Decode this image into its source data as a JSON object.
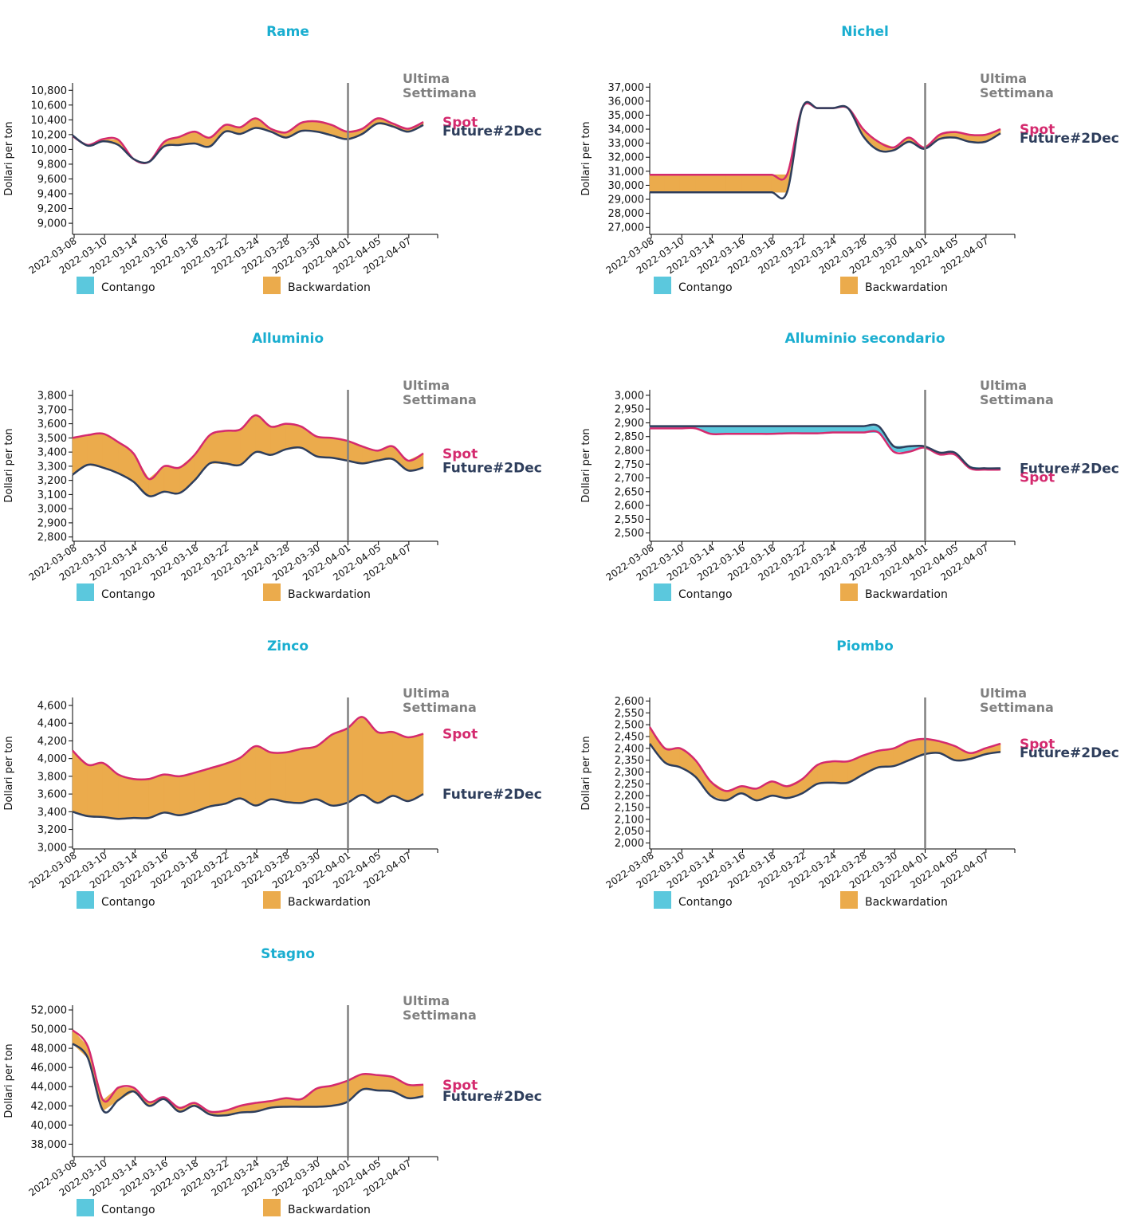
{
  "colors": {
    "title": "#1aaed0",
    "spot": "#d42a6e",
    "future": "#2e3e5c",
    "contango": "#5bc8dd",
    "backwardation": "#ebab4c",
    "annotation": "#808080",
    "vline": "#808080"
  },
  "legend": {
    "contango": "Contango",
    "backwardation": "Backwardation"
  },
  "chart_data": [
    {
      "type": "area",
      "title": "Rame",
      "ylabel": "Dollari per ton",
      "annotation": [
        "Ultima",
        "Settimana"
      ],
      "vline_at": "2022-04-01",
      "x": [
        "2022-03-08",
        "2022-03-09",
        "2022-03-10",
        "2022-03-11",
        "2022-03-14",
        "2022-03-15",
        "2022-03-16",
        "2022-03-17",
        "2022-03-18",
        "2022-03-21",
        "2022-03-22",
        "2022-03-23",
        "2022-03-24",
        "2022-03-25",
        "2022-03-28",
        "2022-03-29",
        "2022-03-30",
        "2022-03-31",
        "2022-04-01",
        "2022-04-04",
        "2022-04-05",
        "2022-04-06",
        "2022-04-07",
        "2022-04-08"
      ],
      "x_tick_labels": [
        "2022-03-08",
        "2022-03-10",
        "2022-03-14",
        "2022-03-16",
        "2022-03-18",
        "2022-03-22",
        "2022-03-24",
        "2022-03-28",
        "2022-03-30",
        "2022-04-01",
        "2022-04-05",
        "2022-04-07"
      ],
      "yticks": [
        9000,
        9200,
        9400,
        9600,
        9800,
        10000,
        10200,
        10400,
        10600,
        10800
      ],
      "ylim": [
        8850,
        10900
      ],
      "series": [
        {
          "name": "Spot",
          "values": [
            10180,
            10060,
            10140,
            10130,
            9870,
            9830,
            10100,
            10170,
            10240,
            10160,
            10330,
            10300,
            10420,
            10280,
            10230,
            10360,
            10380,
            10330,
            10240,
            10280,
            10420,
            10350,
            10280,
            10370
          ]
        },
        {
          "name": "Future#2Dec",
          "values": [
            10190,
            10050,
            10110,
            10060,
            9870,
            9830,
            10040,
            10060,
            10080,
            10040,
            10240,
            10210,
            10290,
            10240,
            10160,
            10250,
            10240,
            10190,
            10140,
            10210,
            10350,
            10310,
            10240,
            10330
          ]
        }
      ]
    },
    {
      "type": "area",
      "title": "Nichel",
      "ylabel": "Dollari per ton",
      "annotation": [
        "Ultima",
        "Settimana"
      ],
      "vline_at": "2022-04-01",
      "x": [
        "2022-03-08",
        "2022-03-09",
        "2022-03-10",
        "2022-03-11",
        "2022-03-14",
        "2022-03-15",
        "2022-03-16",
        "2022-03-17",
        "2022-03-18",
        "2022-03-21",
        "2022-03-22",
        "2022-03-23",
        "2022-03-24",
        "2022-03-25",
        "2022-03-28",
        "2022-03-29",
        "2022-03-30",
        "2022-03-31",
        "2022-04-01",
        "2022-04-04",
        "2022-04-05",
        "2022-04-06",
        "2022-04-07",
        "2022-04-08"
      ],
      "x_tick_labels": [
        "2022-03-08",
        "2022-03-10",
        "2022-03-14",
        "2022-03-16",
        "2022-03-18",
        "2022-03-22",
        "2022-03-24",
        "2022-03-28",
        "2022-03-30",
        "2022-04-01",
        "2022-04-05",
        "2022-04-07"
      ],
      "yticks": [
        27000,
        28000,
        29000,
        30000,
        31000,
        32000,
        33000,
        34000,
        35000,
        36000,
        37000
      ],
      "ylim": [
        26500,
        37300
      ],
      "series": [
        {
          "name": "Spot",
          "values": [
            30750,
            30750,
            30750,
            30750,
            30750,
            30750,
            30750,
            30750,
            30750,
            30750,
            35500,
            35500,
            35500,
            35500,
            34000,
            33100,
            32700,
            33400,
            32700,
            33600,
            33800,
            33600,
            33600,
            34000
          ]
        },
        {
          "name": "Future#2Dec",
          "values": [
            29500,
            29500,
            29500,
            29500,
            29500,
            29500,
            29500,
            29500,
            29500,
            29500,
            35500,
            35500,
            35500,
            35500,
            33500,
            32500,
            32500,
            33100,
            32600,
            33300,
            33400,
            33100,
            33100,
            33700
          ]
        }
      ]
    },
    {
      "type": "area",
      "title": "Alluminio",
      "ylabel": "Dollari per ton",
      "annotation": [
        "Ultima",
        "Settimana"
      ],
      "vline_at": "2022-04-01",
      "x": [
        "2022-03-08",
        "2022-03-09",
        "2022-03-10",
        "2022-03-11",
        "2022-03-14",
        "2022-03-15",
        "2022-03-16",
        "2022-03-17",
        "2022-03-18",
        "2022-03-21",
        "2022-03-22",
        "2022-03-23",
        "2022-03-24",
        "2022-03-25",
        "2022-03-28",
        "2022-03-29",
        "2022-03-30",
        "2022-03-31",
        "2022-04-01",
        "2022-04-04",
        "2022-04-05",
        "2022-04-06",
        "2022-04-07",
        "2022-04-08"
      ],
      "x_tick_labels": [
        "2022-03-08",
        "2022-03-10",
        "2022-03-14",
        "2022-03-16",
        "2022-03-18",
        "2022-03-22",
        "2022-03-24",
        "2022-03-28",
        "2022-03-30",
        "2022-04-01",
        "2022-04-05",
        "2022-04-07"
      ],
      "yticks": [
        2800,
        2900,
        3000,
        3100,
        3200,
        3300,
        3400,
        3500,
        3600,
        3700,
        3800
      ],
      "ylim": [
        2770,
        3840
      ],
      "series": [
        {
          "name": "Spot",
          "values": [
            3500,
            3520,
            3530,
            3470,
            3390,
            3210,
            3300,
            3290,
            3380,
            3520,
            3550,
            3560,
            3660,
            3580,
            3600,
            3580,
            3510,
            3500,
            3480,
            3440,
            3410,
            3440,
            3340,
            3390
          ]
        },
        {
          "name": "Future#2Dec",
          "values": [
            3240,
            3310,
            3290,
            3250,
            3190,
            3090,
            3120,
            3110,
            3200,
            3320,
            3320,
            3310,
            3400,
            3380,
            3420,
            3430,
            3370,
            3360,
            3340,
            3320,
            3340,
            3350,
            3270,
            3290
          ]
        }
      ]
    },
    {
      "type": "area",
      "title": "Alluminio secondario",
      "ylabel": "Dollari per ton",
      "annotation": [
        "Ultima",
        "Settimana"
      ],
      "vline_at": "2022-04-01",
      "x": [
        "2022-03-08",
        "2022-03-09",
        "2022-03-10",
        "2022-03-11",
        "2022-03-14",
        "2022-03-15",
        "2022-03-16",
        "2022-03-17",
        "2022-03-18",
        "2022-03-21",
        "2022-03-22",
        "2022-03-23",
        "2022-03-24",
        "2022-03-25",
        "2022-03-28",
        "2022-03-29",
        "2022-03-30",
        "2022-03-31",
        "2022-04-01",
        "2022-04-04",
        "2022-04-05",
        "2022-04-06",
        "2022-04-07",
        "2022-04-08"
      ],
      "x_tick_labels": [
        "2022-03-08",
        "2022-03-10",
        "2022-03-14",
        "2022-03-16",
        "2022-03-18",
        "2022-03-22",
        "2022-03-24",
        "2022-03-28",
        "2022-03-30",
        "2022-04-01",
        "2022-04-05",
        "2022-04-07"
      ],
      "yticks": [
        2500,
        2550,
        2600,
        2650,
        2700,
        2750,
        2800,
        2850,
        2900,
        2950,
        3000
      ],
      "ylim": [
        2470,
        3020
      ],
      "series": [
        {
          "name": "Spot",
          "values": [
            2880,
            2880,
            2880,
            2880,
            2860,
            2860,
            2860,
            2860,
            2860,
            2862,
            2862,
            2862,
            2865,
            2865,
            2865,
            2865,
            2795,
            2795,
            2810,
            2785,
            2785,
            2735,
            2730,
            2730
          ]
        },
        {
          "name": "Future#2Dec",
          "values": [
            2888,
            2888,
            2888,
            2888,
            2888,
            2888,
            2888,
            2888,
            2888,
            2888,
            2888,
            2888,
            2888,
            2888,
            2888,
            2888,
            2815,
            2815,
            2815,
            2792,
            2792,
            2740,
            2735,
            2735
          ]
        }
      ]
    },
    {
      "type": "area",
      "title": "Zinco",
      "ylabel": "Dollari per ton",
      "annotation": [
        "Ultima",
        "Settimana"
      ],
      "vline_at": "2022-04-01",
      "x": [
        "2022-03-08",
        "2022-03-09",
        "2022-03-10",
        "2022-03-11",
        "2022-03-14",
        "2022-03-15",
        "2022-03-16",
        "2022-03-17",
        "2022-03-18",
        "2022-03-21",
        "2022-03-22",
        "2022-03-23",
        "2022-03-24",
        "2022-03-25",
        "2022-03-28",
        "2022-03-29",
        "2022-03-30",
        "2022-03-31",
        "2022-04-01",
        "2022-04-04",
        "2022-04-05",
        "2022-04-06",
        "2022-04-07",
        "2022-04-08"
      ],
      "x_tick_labels": [
        "2022-03-08",
        "2022-03-10",
        "2022-03-14",
        "2022-03-16",
        "2022-03-18",
        "2022-03-22",
        "2022-03-24",
        "2022-03-28",
        "2022-03-30",
        "2022-04-01",
        "2022-04-05",
        "2022-04-07"
      ],
      "yticks": [
        3000,
        3200,
        3400,
        3600,
        3800,
        4000,
        4200,
        4400,
        4600
      ],
      "ylim": [
        2980,
        4690
      ],
      "series": [
        {
          "name": "Spot",
          "values": [
            4090,
            3930,
            3950,
            3820,
            3770,
            3770,
            3820,
            3800,
            3840,
            3890,
            3940,
            4010,
            4140,
            4070,
            4070,
            4110,
            4140,
            4270,
            4340,
            4470,
            4300,
            4300,
            4240,
            4280
          ]
        },
        {
          "name": "Future#2Dec",
          "values": [
            3400,
            3350,
            3340,
            3320,
            3330,
            3330,
            3390,
            3360,
            3400,
            3460,
            3490,
            3550,
            3470,
            3540,
            3510,
            3500,
            3540,
            3470,
            3500,
            3590,
            3500,
            3580,
            3520,
            3600
          ]
        }
      ]
    },
    {
      "type": "area",
      "title": "Piombo",
      "ylabel": "Dollari per ton",
      "annotation": [
        "Ultima",
        "Settimana"
      ],
      "vline_at": "2022-04-01",
      "x": [
        "2022-03-08",
        "2022-03-09",
        "2022-03-10",
        "2022-03-11",
        "2022-03-14",
        "2022-03-15",
        "2022-03-16",
        "2022-03-17",
        "2022-03-18",
        "2022-03-21",
        "2022-03-22",
        "2022-03-23",
        "2022-03-24",
        "2022-03-25",
        "2022-03-28",
        "2022-03-29",
        "2022-03-30",
        "2022-03-31",
        "2022-04-01",
        "2022-04-04",
        "2022-04-05",
        "2022-04-06",
        "2022-04-07",
        "2022-04-08"
      ],
      "x_tick_labels": [
        "2022-03-08",
        "2022-03-10",
        "2022-03-14",
        "2022-03-16",
        "2022-03-18",
        "2022-03-22",
        "2022-03-24",
        "2022-03-28",
        "2022-03-30",
        "2022-04-01",
        "2022-04-05",
        "2022-04-07"
      ],
      "yticks": [
        2000,
        2050,
        2100,
        2150,
        2200,
        2250,
        2300,
        2350,
        2400,
        2450,
        2500,
        2550,
        2600
      ],
      "ylim": [
        1975,
        2615
      ],
      "series": [
        {
          "name": "Spot",
          "values": [
            2490,
            2400,
            2400,
            2350,
            2260,
            2220,
            2240,
            2230,
            2260,
            2240,
            2270,
            2330,
            2345,
            2345,
            2370,
            2390,
            2400,
            2430,
            2440,
            2430,
            2410,
            2380,
            2400,
            2420
          ]
        },
        {
          "name": "Future#2Dec",
          "values": [
            2420,
            2340,
            2320,
            2280,
            2200,
            2180,
            2210,
            2180,
            2200,
            2190,
            2210,
            2250,
            2255,
            2255,
            2290,
            2320,
            2325,
            2350,
            2375,
            2380,
            2350,
            2355,
            2375,
            2385
          ]
        }
      ]
    },
    {
      "type": "area",
      "title": "Stagno",
      "ylabel": "Dollari per ton",
      "annotation": [
        "Ultima",
        "Settimana"
      ],
      "vline_at": "2022-04-01",
      "x": [
        "2022-03-08",
        "2022-03-09",
        "2022-03-10",
        "2022-03-11",
        "2022-03-14",
        "2022-03-15",
        "2022-03-16",
        "2022-03-17",
        "2022-03-18",
        "2022-03-21",
        "2022-03-22",
        "2022-03-23",
        "2022-03-24",
        "2022-03-25",
        "2022-03-28",
        "2022-03-29",
        "2022-03-30",
        "2022-03-31",
        "2022-04-01",
        "2022-04-04",
        "2022-04-05",
        "2022-04-06",
        "2022-04-07",
        "2022-04-08"
      ],
      "x_tick_labels": [
        "2022-03-08",
        "2022-03-10",
        "2022-03-14",
        "2022-03-16",
        "2022-03-18",
        "2022-03-22",
        "2022-03-24",
        "2022-03-28",
        "2022-03-30",
        "2022-04-01",
        "2022-04-05",
        "2022-04-07"
      ],
      "yticks": [
        38000,
        40000,
        42000,
        44000,
        46000,
        48000,
        50000,
        52000
      ],
      "ylim": [
        36700,
        52500
      ],
      "series": [
        {
          "name": "Spot",
          "values": [
            49900,
            48200,
            42600,
            43900,
            43900,
            42400,
            42900,
            41800,
            42300,
            41400,
            41500,
            42000,
            42300,
            42500,
            42800,
            42700,
            43800,
            44100,
            44600,
            45300,
            45200,
            45000,
            44200,
            44200
          ]
        },
        {
          "name": "Future#2Dec",
          "values": [
            48500,
            47000,
            41500,
            42600,
            43500,
            42000,
            42700,
            41400,
            42000,
            41100,
            41000,
            41300,
            41400,
            41800,
            41900,
            41900,
            41900,
            42000,
            42400,
            43700,
            43600,
            43500,
            42800,
            43000
          ]
        }
      ]
    }
  ]
}
